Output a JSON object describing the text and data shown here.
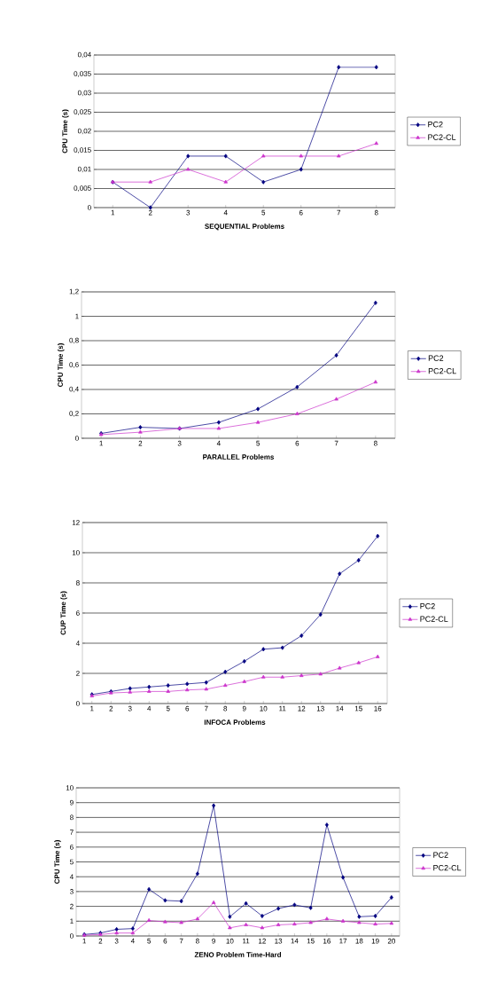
{
  "chart_data": [
    {
      "type": "line",
      "xlabel": "SEQUENTIAL Problems",
      "ylabel": "CPU Time (s)",
      "categories": [
        "1",
        "2",
        "3",
        "4",
        "5",
        "6",
        "7",
        "8"
      ],
      "series": [
        {
          "name": "PC2",
          "color": "#000080",
          "marker": "diamond",
          "values": [
            0.0067,
            0,
            0.0135,
            0.0135,
            0.0067,
            0.01,
            0.0368,
            0.0368
          ]
        },
        {
          "name": "PC2-CL",
          "color": "#cc33cc",
          "marker": "triangle",
          "values": [
            0.0067,
            0.0067,
            0.01,
            0.0067,
            0.0135,
            0.0135,
            0.0135,
            0.0168
          ]
        }
      ],
      "ylim": [
        0,
        0.04
      ],
      "yticks": [
        0,
        {
          "value": 0.005,
          "label": "0,005"
        },
        {
          "value": 0.01,
          "label": "0,01"
        },
        {
          "value": 0.015,
          "label": "0,015"
        },
        {
          "value": 0.02,
          "label": "0,02"
        },
        {
          "value": 0.025,
          "label": "0,025"
        },
        {
          "value": 0.03,
          "label": "0,03"
        },
        {
          "value": 0.035,
          "label": "0,035"
        },
        {
          "value": 0.04,
          "label": "0,04"
        }
      ],
      "grid": "y",
      "legend": "right"
    },
    {
      "type": "line",
      "xlabel": "PARALLEL Problems",
      "ylabel": "CPU Time (s)",
      "categories": [
        "1",
        "2",
        "3",
        "4",
        "5",
        "6",
        "7",
        "8"
      ],
      "series": [
        {
          "name": "PC2",
          "color": "#000080",
          "marker": "diamond",
          "values": [
            0.04,
            0.09,
            0.08,
            0.13,
            0.24,
            0.42,
            0.68,
            1.11
          ]
        },
        {
          "name": "PC2-CL",
          "color": "#cc33cc",
          "marker": "triangle",
          "values": [
            0.03,
            0.05,
            0.08,
            0.08,
            0.13,
            0.2,
            0.32,
            0.46
          ]
        }
      ],
      "ylim": [
        0,
        1.2
      ],
      "yticks": [
        0,
        {
          "value": 0.2,
          "label": "0,2"
        },
        {
          "value": 0.4,
          "label": "0,4"
        },
        {
          "value": 0.6,
          "label": "0,6"
        },
        {
          "value": 0.8,
          "label": "0,8"
        },
        1,
        {
          "value": 1.2,
          "label": "1,2"
        }
      ],
      "grid": "y",
      "legend": "right"
    },
    {
      "type": "line",
      "xlabel": "INFOCA Problems",
      "ylabel": "CUP Time (s)",
      "categories": [
        "1",
        "2",
        "3",
        "4",
        "5",
        "6",
        "7",
        "8",
        "9",
        "10",
        "11",
        "12",
        "13",
        "14",
        "15",
        "16"
      ],
      "series": [
        {
          "name": "PC2",
          "color": "#000080",
          "marker": "diamond",
          "values": [
            0.6,
            0.8,
            1.0,
            1.1,
            1.2,
            1.3,
            1.4,
            2.1,
            2.8,
            3.6,
            3.7,
            4.5,
            5.9,
            8.6,
            9.5,
            11.1
          ]
        },
        {
          "name": "PC2-CL",
          "color": "#cc33cc",
          "marker": "triangle",
          "values": [
            0.5,
            0.7,
            0.75,
            0.8,
            0.8,
            0.9,
            0.95,
            1.2,
            1.45,
            1.75,
            1.75,
            1.85,
            1.95,
            2.35,
            2.7,
            3.1
          ]
        }
      ],
      "ylim": [
        0,
        12
      ],
      "yticks": [
        0,
        2,
        4,
        6,
        8,
        10,
        12
      ],
      "grid": "y",
      "legend": "right"
    },
    {
      "type": "line",
      "xlabel": "ZENO Problem Time-Hard",
      "ylabel": "CPU Time (s)",
      "categories": [
        "1",
        "2",
        "3",
        "4",
        "5",
        "6",
        "7",
        "8",
        "9",
        "10",
        "11",
        "12",
        "13",
        "14",
        "15",
        "16",
        "17",
        "18",
        "19",
        "20"
      ],
      "series": [
        {
          "name": "PC2",
          "color": "#000080",
          "marker": "diamond",
          "values": [
            0.1,
            0.2,
            0.45,
            0.5,
            3.15,
            2.4,
            2.35,
            4.2,
            8.8,
            1.3,
            2.2,
            1.35,
            1.85,
            2.1,
            1.9,
            7.5,
            3.95,
            1.3,
            1.35,
            2.6
          ]
        },
        {
          "name": "PC2-CL",
          "color": "#cc33cc",
          "marker": "triangle",
          "values": [
            0.05,
            0.1,
            0.2,
            0.2,
            1.05,
            0.95,
            0.9,
            1.15,
            2.25,
            0.55,
            0.75,
            0.55,
            0.75,
            0.8,
            0.9,
            1.15,
            1.0,
            0.9,
            0.8,
            0.85
          ]
        }
      ],
      "ylim": [
        0,
        10
      ],
      "yticks": [
        0,
        1,
        2,
        3,
        4,
        5,
        6,
        7,
        8,
        9,
        10
      ],
      "grid": "y",
      "legend": "right"
    }
  ]
}
